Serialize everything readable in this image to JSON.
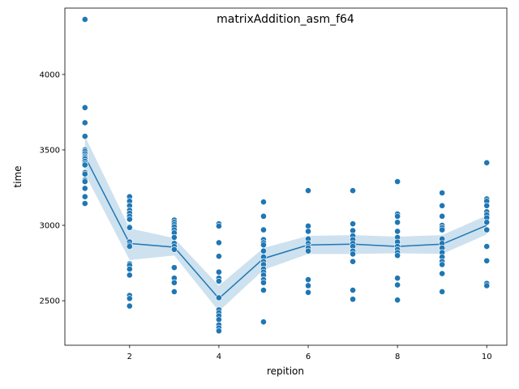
{
  "chart_data": {
    "type": "scatter",
    "title": "matrixAddition_asm_f64",
    "xlabel": "repition",
    "ylabel": "time",
    "xlim": [
      0.55,
      10.45
    ],
    "ylim": [
      2205,
      4440
    ],
    "xticks": [
      2,
      4,
      6,
      8,
      10
    ],
    "xtick_labels": [
      "2",
      "4",
      "6",
      "8",
      "10"
    ],
    "yticks": [
      2500,
      3000,
      3500,
      4000
    ],
    "ytick_labels": [
      "2500",
      "3000",
      "3500",
      "4000"
    ],
    "grid": false,
    "legend": "none",
    "colors": {
      "points": "#1f77b4",
      "line": "#1f77b4",
      "band": "#1f77b4"
    },
    "points": [
      {
        "x": 1,
        "ys": [
          4365,
          3780,
          3680,
          3590,
          3500,
          3490,
          3475,
          3460,
          3450,
          3440,
          3425,
          3410,
          3400,
          3350,
          3340,
          3300,
          3290,
          3245,
          3190,
          3145
        ]
      },
      {
        "x": 2,
        "ys": [
          3190,
          3160,
          3130,
          3100,
          3080,
          3060,
          3040,
          2990,
          2985,
          2890,
          2870,
          2860,
          2745,
          2735,
          2710,
          2670,
          2535,
          2515,
          2465
        ]
      },
      {
        "x": 3,
        "ys": [
          3035,
          3020,
          3005,
          2990,
          2970,
          2950,
          2920,
          2880,
          2860,
          2840,
          2720,
          2650,
          2620,
          2560
        ]
      },
      {
        "x": 4,
        "ys": [
          3010,
          2995,
          2885,
          2795,
          2690,
          2650,
          2630,
          2520,
          2440,
          2420,
          2400,
          2375,
          2340,
          2320,
          2300
        ]
      },
      {
        "x": 5,
        "ys": [
          3155,
          3060,
          2970,
          2905,
          2885,
          2870,
          2830,
          2790,
          2760,
          2740,
          2710,
          2690,
          2670,
          2640,
          2620,
          2570,
          2360
        ]
      },
      {
        "x": 6,
        "ys": [
          3230,
          2995,
          2960,
          2910,
          2880,
          2860,
          2850,
          2830,
          2640,
          2600,
          2555
        ]
      },
      {
        "x": 7,
        "ys": [
          3230,
          3010,
          2965,
          2930,
          2905,
          2880,
          2860,
          2830,
          2810,
          2760,
          2570,
          2510
        ]
      },
      {
        "x": 8,
        "ys": [
          3290,
          3075,
          3060,
          3020,
          2960,
          2920,
          2890,
          2860,
          2840,
          2820,
          2800,
          2650,
          2605,
          2505
        ]
      },
      {
        "x": 9,
        "ys": [
          3215,
          3130,
          3060,
          3000,
          2985,
          2970,
          2910,
          2880,
          2850,
          2820,
          2790,
          2760,
          2740,
          2680,
          2560
        ]
      },
      {
        "x": 10,
        "ys": [
          3415,
          3175,
          3160,
          3130,
          3090,
          3070,
          3050,
          3020,
          2970,
          2860,
          2765,
          2615,
          2600
        ]
      }
    ],
    "mean_line": {
      "x": [
        1,
        2,
        3,
        4,
        5,
        6,
        7,
        8,
        9,
        10
      ],
      "y": [
        3455,
        2880,
        2855,
        2515,
        2780,
        2870,
        2875,
        2860,
        2875,
        3000
      ],
      "ci_low": [
        3340,
        2770,
        2800,
        2430,
        2705,
        2810,
        2810,
        2815,
        2810,
        2940
      ],
      "ci_high": [
        3590,
        2980,
        2915,
        2600,
        2850,
        2930,
        2935,
        2925,
        2935,
        3065
      ]
    }
  }
}
